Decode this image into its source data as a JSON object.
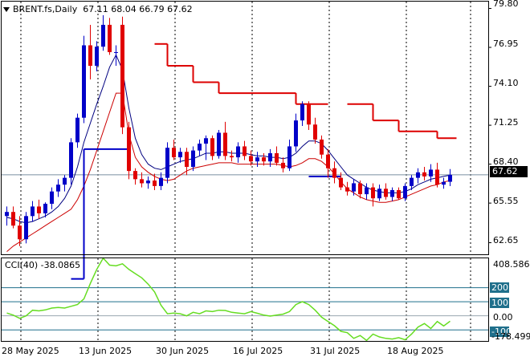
{
  "header": {
    "symbol": "BRENT.fs,Daily",
    "ohlc": "67.11 68.04 66.79 67.62"
  },
  "price_axis": {
    "labels": [
      "79.80",
      "76.95",
      "74.10",
      "71.25",
      "68.40",
      "65.55",
      "62.65"
    ],
    "current_price": "67.62"
  },
  "cci_panel": {
    "label": "CCI(40) -38.0865",
    "axis_labels": [
      "408.586",
      "0.00",
      "-178.499"
    ],
    "level_boxes": [
      "200",
      "100",
      "-100"
    ]
  },
  "time_axis": {
    "labels": [
      "28 May 2025",
      "13 Jun 2025",
      "30 Jun 2025",
      "16 Jul 2025",
      "31 Jul 2025",
      "18 Aug 2025"
    ]
  },
  "colors": {
    "bull": "#0000c8",
    "bear": "#e00000",
    "cci_line": "#66dd22",
    "level_box": "#1f6f8b",
    "fast_ma": "#000080",
    "slow_ma": "#cc0000",
    "resistance": "#dd0000"
  },
  "chart_data": {
    "type": "candlestick",
    "candles": [
      [
        64.6,
        65.3,
        63.9,
        64.9
      ],
      [
        64.9,
        65.3,
        63.7,
        63.9
      ],
      [
        63.9,
        64.6,
        62.4,
        62.9
      ],
      [
        62.9,
        64.9,
        62.6,
        64.6
      ],
      [
        64.6,
        65.7,
        64.2,
        65.3
      ],
      [
        65.3,
        65.8,
        64.4,
        64.8
      ],
      [
        64.8,
        65.6,
        64.5,
        65.5
      ],
      [
        65.5,
        66.7,
        65.1,
        66.4
      ],
      [
        66.4,
        67.3,
        66.0,
        66.9
      ],
      [
        66.9,
        67.6,
        66.4,
        67.4
      ],
      [
        67.4,
        70.3,
        66.9,
        70.0
      ],
      [
        70.0,
        72.1,
        69.6,
        71.8
      ],
      [
        71.8,
        77.8,
        71.4,
        77.1
      ],
      [
        77.1,
        78.6,
        74.6,
        75.6
      ],
      [
        75.6,
        77.4,
        75.2,
        77.0
      ],
      [
        77.0,
        79.3,
        76.7,
        78.6
      ],
      [
        78.6,
        79.1,
        76.4,
        76.6
      ],
      [
        76.6,
        77.1,
        75.6,
        76.6
      ],
      [
        78.6,
        79.2,
        70.6,
        71.1
      ],
      [
        71.1,
        71.5,
        67.3,
        67.9
      ],
      [
        67.9,
        68.1,
        66.9,
        67.3
      ],
      [
        67.3,
        67.8,
        66.7,
        67.0
      ],
      [
        67.0,
        67.5,
        66.6,
        67.2
      ],
      [
        67.2,
        67.7,
        66.5,
        66.8
      ],
      [
        66.8,
        67.8,
        66.5,
        67.4
      ],
      [
        67.4,
        70.0,
        67.0,
        69.6
      ],
      [
        69.6,
        70.2,
        68.7,
        68.9
      ],
      [
        68.9,
        69.6,
        68.5,
        69.3
      ],
      [
        69.3,
        69.6,
        67.6,
        68.2
      ],
      [
        68.2,
        69.7,
        67.9,
        69.4
      ],
      [
        69.4,
        70.2,
        69.0,
        69.9
      ],
      [
        69.9,
        70.5,
        68.7,
        70.3
      ],
      [
        70.3,
        70.5,
        68.7,
        69.0
      ],
      [
        69.0,
        70.9,
        68.8,
        70.7
      ],
      [
        70.7,
        71.5,
        68.7,
        69.0
      ],
      [
        69.0,
        69.4,
        68.6,
        68.9
      ],
      [
        68.9,
        70.0,
        68.5,
        69.7
      ],
      [
        69.7,
        70.1,
        68.7,
        69.0
      ],
      [
        69.0,
        69.4,
        68.3,
        68.6
      ],
      [
        68.6,
        69.3,
        68.2,
        68.9
      ],
      [
        68.9,
        69.2,
        68.3,
        68.6
      ],
      [
        68.6,
        69.5,
        68.2,
        69.2
      ],
      [
        69.2,
        69.7,
        68.3,
        68.5
      ],
      [
        68.5,
        68.9,
        67.8,
        68.1
      ],
      [
        68.1,
        70.2,
        67.9,
        69.7
      ],
      [
        69.7,
        72.1,
        69.3,
        71.6
      ],
      [
        71.6,
        73.0,
        71.2,
        72.8
      ],
      [
        72.8,
        73.0,
        70.9,
        71.3
      ],
      [
        71.3,
        71.8,
        69.9,
        70.2
      ],
      [
        70.2,
        70.5,
        68.8,
        69.1
      ],
      [
        69.1,
        69.5,
        67.4,
        68.1
      ],
      [
        68.1,
        68.6,
        67.0,
        67.4
      ],
      [
        67.4,
        67.8,
        66.5,
        66.7
      ],
      [
        66.7,
        67.1,
        66.1,
        66.4
      ],
      [
        66.4,
        67.3,
        66.1,
        67.0
      ],
      [
        67.0,
        67.2,
        65.9,
        66.2
      ],
      [
        66.2,
        67.0,
        65.8,
        66.7
      ],
      [
        66.7,
        67.0,
        65.3,
        65.9
      ],
      [
        65.9,
        66.9,
        65.7,
        66.6
      ],
      [
        66.6,
        67.0,
        65.8,
        66.0
      ],
      [
        66.0,
        66.7,
        65.7,
        66.5
      ],
      [
        66.5,
        66.7,
        65.8,
        65.9
      ],
      [
        65.9,
        67.0,
        65.7,
        66.8
      ],
      [
        66.8,
        67.6,
        66.5,
        67.4
      ],
      [
        67.4,
        68.1,
        67.0,
        67.8
      ],
      [
        67.8,
        68.2,
        67.2,
        67.5
      ],
      [
        67.5,
        68.4,
        67.1,
        68.0
      ],
      [
        68.0,
        68.5,
        66.7,
        66.9
      ],
      [
        66.9,
        67.4,
        66.6,
        67.1
      ],
      [
        67.11,
        68.04,
        66.79,
        67.62
      ]
    ],
    "fast_ma": [
      64.5,
      64.4,
      64.2,
      64.1,
      64.2,
      64.4,
      64.6,
      64.9,
      65.3,
      65.9,
      66.8,
      68.2,
      70.0,
      71.4,
      72.8,
      74.1,
      75.5,
      76.4,
      75.3,
      72.5,
      70.3,
      69.1,
      68.4,
      68.1,
      68.0,
      68.2,
      68.4,
      68.6,
      68.7,
      68.8,
      69.0,
      69.2,
      69.2,
      69.3,
      69.3,
      69.2,
      69.2,
      69.2,
      69.1,
      69.0,
      69.0,
      68.9,
      68.9,
      68.8,
      68.9,
      69.2,
      69.7,
      70.1,
      70.1,
      69.9,
      69.4,
      68.8,
      68.2,
      67.6,
      67.3,
      67.0,
      66.7,
      66.5,
      66.4,
      66.3,
      66.3,
      66.3,
      66.4,
      66.6,
      66.9,
      67.1,
      67.3,
      67.4,
      67.5,
      67.6
    ],
    "slow_ma": [
      62.0,
      62.4,
      62.7,
      63.0,
      63.3,
      63.6,
      63.9,
      64.2,
      64.5,
      64.8,
      65.1,
      65.8,
      66.8,
      68.0,
      69.4,
      70.8,
      72.2,
      73.6,
      73.6,
      70.6,
      68.9,
      68.2,
      67.8,
      67.5,
      67.3,
      67.2,
      67.3,
      67.6,
      67.9,
      68.1,
      68.2,
      68.3,
      68.4,
      68.5,
      68.5,
      68.5,
      68.4,
      68.4,
      68.4,
      68.4,
      68.4,
      68.4,
      68.4,
      68.3,
      68.2,
      68.3,
      68.5,
      68.8,
      68.8,
      68.6,
      68.2,
      67.7,
      67.1,
      66.6,
      66.3,
      66.0,
      65.8,
      65.7,
      65.6,
      65.6,
      65.7,
      65.8,
      66.0,
      66.2,
      66.4,
      66.6,
      66.8,
      66.9,
      67.1,
      67.2
    ],
    "resistance_segments": [
      {
        "from": 23,
        "to": 25,
        "value": 77.2
      },
      {
        "from": 25,
        "to": 29,
        "value": 75.6
      },
      {
        "from": 29,
        "to": 33,
        "value": 74.4
      },
      {
        "from": 33,
        "to": 45,
        "value": 73.6
      },
      {
        "from": 45,
        "to": 50,
        "value": 72.8
      },
      {
        "from": 53,
        "to": 57,
        "value": 72.8
      },
      {
        "from": 57,
        "to": 61,
        "value": 71.6
      },
      {
        "from": 61,
        "to": 67,
        "value": 70.8
      },
      {
        "from": 67,
        "to": 70,
        "value": 70.3
      }
    ],
    "support_segments": [
      {
        "from": 10,
        "to": 12,
        "value": 60.0
      },
      {
        "from": 12,
        "to": 13,
        "value": 69.5
      },
      {
        "from": 13,
        "to": 19,
        "value": 69.5
      },
      {
        "from": 47,
        "to": 52,
        "value": 67.5
      }
    ],
    "cci": [
      20,
      5,
      -18,
      0,
      40,
      35,
      42,
      55,
      60,
      55,
      68,
      80,
      120,
      230,
      330,
      410,
      360,
      355,
      370,
      330,
      300,
      270,
      225,
      170,
      75,
      15,
      20,
      15,
      0,
      25,
      15,
      35,
      30,
      40,
      38,
      25,
      20,
      15,
      30,
      18,
      5,
      -2,
      5,
      12,
      30,
      80,
      100,
      80,
      40,
      -10,
      -40,
      -70,
      -110,
      -120,
      -160,
      -140,
      -175,
      -130,
      -150,
      -160,
      -165,
      -155,
      -170,
      -130,
      -80,
      -55,
      -90,
      -40,
      -72,
      -38.0865
    ],
    "cci_levels": [
      200,
      100,
      0,
      -100
    ],
    "price_ylim": [
      61.8,
      80.3
    ],
    "cci_ylim": [
      -178.499,
      408.586
    ]
  }
}
